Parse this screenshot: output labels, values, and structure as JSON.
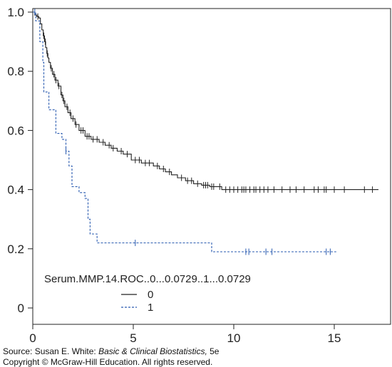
{
  "chart_data": {
    "type": "line",
    "step": true,
    "title": "",
    "xlabel": "",
    "ylabel": "",
    "xlim": [
      0,
      17.5
    ],
    "ylim": [
      0,
      1.04
    ],
    "xticks": [
      0,
      5,
      10,
      15
    ],
    "yticks": [
      0,
      0.2,
      0.4,
      0.6,
      0.8,
      1.0
    ],
    "xtick_labels": [
      "0",
      "5",
      "10",
      "15"
    ],
    "ytick_labels": [
      "0",
      "0.2",
      "0.4",
      "0.6",
      "0.8",
      "1.0"
    ],
    "grid": false,
    "legend": {
      "title": "Serum.MMP.14.ROC..0...0.0729..1...0.0729",
      "position": "bottom-left"
    },
    "series": [
      {
        "name": "0",
        "color": "#222222",
        "dash": "solid",
        "steps": [
          [
            0,
            1.0
          ],
          [
            0.1,
            0.99
          ],
          [
            0.2,
            0.985
          ],
          [
            0.3,
            0.98
          ],
          [
            0.38,
            0.96
          ],
          [
            0.45,
            0.94
          ],
          [
            0.52,
            0.92
          ],
          [
            0.58,
            0.9
          ],
          [
            0.64,
            0.88
          ],
          [
            0.7,
            0.86
          ],
          [
            0.75,
            0.845
          ],
          [
            0.8,
            0.83
          ],
          [
            0.88,
            0.81
          ],
          [
            0.98,
            0.79
          ],
          [
            1.1,
            0.77
          ],
          [
            1.25,
            0.75
          ],
          [
            1.4,
            0.72
          ],
          [
            1.5,
            0.7
          ],
          [
            1.6,
            0.68
          ],
          [
            1.75,
            0.66
          ],
          [
            1.9,
            0.64
          ],
          [
            2.1,
            0.62
          ],
          [
            2.3,
            0.6
          ],
          [
            2.6,
            0.58
          ],
          [
            2.9,
            0.57
          ],
          [
            3.3,
            0.56
          ],
          [
            3.6,
            0.55
          ],
          [
            3.9,
            0.54
          ],
          [
            4.2,
            0.53
          ],
          [
            4.5,
            0.52
          ],
          [
            4.9,
            0.5
          ],
          [
            5.4,
            0.49
          ],
          [
            6.0,
            0.48
          ],
          [
            6.3,
            0.47
          ],
          [
            6.6,
            0.46
          ],
          [
            6.9,
            0.45
          ],
          [
            7.2,
            0.44
          ],
          [
            7.6,
            0.43
          ],
          [
            8.0,
            0.42
          ],
          [
            8.4,
            0.415
          ],
          [
            8.8,
            0.41
          ],
          [
            9.4,
            0.4
          ],
          [
            17.2,
            0.4
          ]
        ],
        "censor_x": [
          0.25,
          0.55,
          0.62,
          0.72,
          0.92,
          1.05,
          1.15,
          1.3,
          1.45,
          1.55,
          1.7,
          1.85,
          2.0,
          2.15,
          2.4,
          2.5,
          2.7,
          2.8,
          3.0,
          3.2,
          3.5,
          3.8,
          4.0,
          4.4,
          4.7,
          5.1,
          5.3,
          5.6,
          5.8,
          6.2,
          6.5,
          6.8,
          7.4,
          7.7,
          7.9,
          8.2,
          8.5,
          8.6,
          8.7,
          8.9,
          9.0,
          9.3,
          9.6,
          9.8,
          10.0,
          10.2,
          10.4,
          10.5,
          10.6,
          10.8,
          11.0,
          11.1,
          11.3,
          11.5,
          11.7,
          12.0,
          12.4,
          12.8,
          13.1,
          13.5,
          14.0,
          14.2,
          14.5,
          14.6,
          15.0,
          15.5,
          16.5,
          16.9
        ]
      },
      {
        "name": "1",
        "color": "#2a5bb0",
        "dash": "dashed",
        "steps": [
          [
            0,
            1.0
          ],
          [
            0.15,
            0.97
          ],
          [
            0.35,
            0.9
          ],
          [
            0.5,
            0.83
          ],
          [
            0.55,
            0.73
          ],
          [
            0.8,
            0.67
          ],
          [
            1.15,
            0.59
          ],
          [
            1.45,
            0.57
          ],
          [
            1.65,
            0.53
          ],
          [
            1.8,
            0.48
          ],
          [
            1.95,
            0.41
          ],
          [
            2.3,
            0.39
          ],
          [
            2.6,
            0.37
          ],
          [
            2.75,
            0.3
          ],
          [
            2.85,
            0.25
          ],
          [
            3.2,
            0.22
          ],
          [
            8.9,
            0.19
          ],
          [
            15.1,
            0.19
          ]
        ],
        "censor_x": [
          0.1,
          1.65,
          5.1,
          10.6,
          10.75,
          11.6,
          11.9,
          14.6,
          14.8
        ]
      }
    ]
  },
  "source": {
    "line1_prefix": "Source: Susan E. White: ",
    "line1_title": "Basic & Clinical Biostatistics,",
    "line1_suffix": " 5e",
    "line2": "Copyright © McGraw-Hill Education. All rights reserved."
  }
}
